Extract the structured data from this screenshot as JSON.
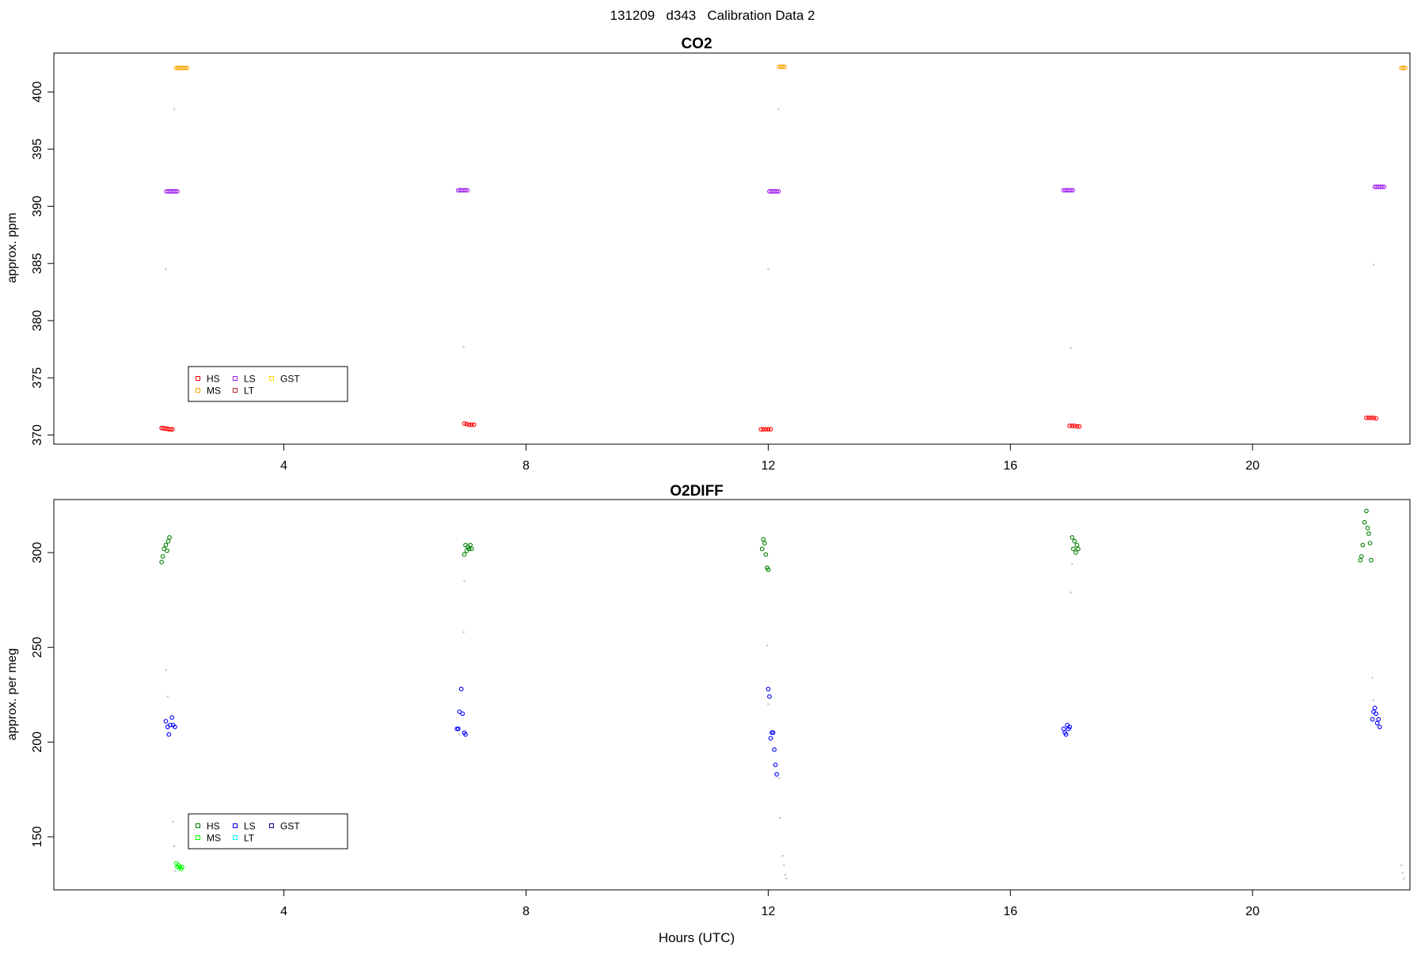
{
  "figure": {
    "title": "131209   d343   Calibration Data 2",
    "xlabel": "Hours (UTC)"
  },
  "chart_data": [
    {
      "type": "scatter",
      "title": "CO2",
      "xlabel": "",
      "ylabel": "approx. ppm",
      "xlim": [
        0.2,
        22.6
      ],
      "ylim": [
        369.2,
        403.4
      ],
      "xticks": [
        4,
        8,
        12,
        16,
        20
      ],
      "yticks": [
        370,
        375,
        380,
        385,
        390,
        395,
        400
      ],
      "legend": {
        "placement": "bottom-left",
        "columns": 3,
        "entries": [
          {
            "label": "HS",
            "color": "#ff0000"
          },
          {
            "label": "MS",
            "color": "#ffa500"
          },
          {
            "label": "LS",
            "color": "#a020f0"
          },
          {
            "label": "LT",
            "color": "#b22222"
          },
          {
            "label": "GST",
            "color": "#ffd700"
          }
        ]
      },
      "grid": false,
      "series": [
        {
          "name": "HS",
          "color": "#ff0000",
          "marker": "circle",
          "points": [
            [
              1.98,
              370.6
            ],
            [
              2.01,
              370.6
            ],
            [
              2.04,
              370.55
            ],
            [
              2.07,
              370.55
            ],
            [
              2.1,
              370.5
            ],
            [
              2.13,
              370.5
            ],
            [
              2.16,
              370.5
            ],
            [
              6.98,
              371.0
            ],
            [
              7.02,
              370.95
            ],
            [
              7.06,
              370.9
            ],
            [
              7.1,
              370.9
            ],
            [
              7.14,
              370.9
            ],
            [
              11.88,
              370.5
            ],
            [
              11.92,
              370.5
            ],
            [
              11.96,
              370.5
            ],
            [
              12.0,
              370.5
            ],
            [
              12.04,
              370.5
            ],
            [
              16.98,
              370.8
            ],
            [
              17.02,
              370.8
            ],
            [
              17.06,
              370.8
            ],
            [
              17.1,
              370.75
            ],
            [
              17.14,
              370.75
            ],
            [
              21.88,
              371.5
            ],
            [
              21.92,
              371.5
            ],
            [
              21.96,
              371.5
            ],
            [
              22.0,
              371.5
            ],
            [
              22.04,
              371.45
            ]
          ]
        },
        {
          "name": "MS",
          "color": "#ffa500",
          "marker": "circle",
          "points": [
            [
              2.22,
              402.1
            ],
            [
              2.25,
              402.1
            ],
            [
              2.28,
              402.1
            ],
            [
              2.31,
              402.1
            ],
            [
              2.34,
              402.1
            ],
            [
              2.37,
              402.1
            ],
            [
              2.4,
              402.1
            ],
            [
              12.18,
              402.2
            ],
            [
              12.21,
              402.2
            ],
            [
              12.24,
              402.2
            ],
            [
              12.27,
              402.2
            ],
            [
              22.46,
              402.1
            ],
            [
              22.49,
              402.1
            ],
            [
              22.52,
              402.1
            ]
          ]
        },
        {
          "name": "LS",
          "color": "#a020f0",
          "marker": "circle",
          "points": [
            [
              2.06,
              391.3
            ],
            [
              2.09,
              391.3
            ],
            [
              2.12,
              391.3
            ],
            [
              2.15,
              391.3
            ],
            [
              2.18,
              391.3
            ],
            [
              2.21,
              391.3
            ],
            [
              2.24,
              391.3
            ],
            [
              6.88,
              391.4
            ],
            [
              6.91,
              391.4
            ],
            [
              6.94,
              391.4
            ],
            [
              6.97,
              391.4
            ],
            [
              7.0,
              391.4
            ],
            [
              7.03,
              391.4
            ],
            [
              12.02,
              391.3
            ],
            [
              12.05,
              391.3
            ],
            [
              12.08,
              391.3
            ],
            [
              12.11,
              391.3
            ],
            [
              12.14,
              391.3
            ],
            [
              12.17,
              391.3
            ],
            [
              16.88,
              391.4
            ],
            [
              16.91,
              391.4
            ],
            [
              16.94,
              391.4
            ],
            [
              16.97,
              391.4
            ],
            [
              17.0,
              391.4
            ],
            [
              17.03,
              391.4
            ],
            [
              22.02,
              391.7
            ],
            [
              22.05,
              391.7
            ],
            [
              22.08,
              391.7
            ],
            [
              22.11,
              391.7
            ],
            [
              22.14,
              391.7
            ],
            [
              22.17,
              391.7
            ]
          ]
        },
        {
          "name": "transition",
          "color": "#bfbfbf",
          "marker": "dot",
          "points": [
            [
              2.05,
              384.5
            ],
            [
              2.19,
              398.5
            ],
            [
              6.97,
              377.7
            ],
            [
              12.0,
              384.5
            ],
            [
              12.17,
              398.5
            ],
            [
              17.0,
              377.6
            ],
            [
              22.0,
              384.9
            ]
          ]
        }
      ]
    },
    {
      "type": "scatter",
      "title": "O2DIFF",
      "xlabel": "Hours (UTC)",
      "ylabel": "approx. per meg",
      "xlim": [
        0.2,
        22.6
      ],
      "ylim": [
        122,
        328
      ],
      "xticks": [
        4,
        8,
        12,
        16,
        20
      ],
      "yticks": [
        150,
        200,
        250,
        300
      ],
      "legend": {
        "placement": "bottom-left",
        "columns": 3,
        "entries": [
          {
            "label": "HS",
            "color": "#008000"
          },
          {
            "label": "MS",
            "color": "#00ff00"
          },
          {
            "label": "LS",
            "color": "#0000ff"
          },
          {
            "label": "LT",
            "color": "#00ffff"
          },
          {
            "label": "GST",
            "color": "#00008b"
          }
        ]
      },
      "grid": false,
      "series": [
        {
          "name": "HS",
          "color": "#008000",
          "marker": "circle",
          "points": [
            [
              1.98,
              295
            ],
            [
              2.0,
              298
            ],
            [
              2.02,
              302
            ],
            [
              2.05,
              304
            ],
            [
              2.07,
              301
            ],
            [
              2.09,
              306
            ],
            [
              2.11,
              308
            ],
            [
              6.98,
              299
            ],
            [
              7.0,
              304
            ],
            [
              7.02,
              301
            ],
            [
              7.04,
              303
            ],
            [
              7.06,
              302
            ],
            [
              7.08,
              304
            ],
            [
              7.1,
              302
            ],
            [
              11.9,
              302
            ],
            [
              11.92,
              307
            ],
            [
              11.94,
              305
            ],
            [
              11.96,
              299
            ],
            [
              11.98,
              292
            ],
            [
              12.0,
              291
            ],
            [
              17.02,
              308
            ],
            [
              17.04,
              302
            ],
            [
              17.06,
              306
            ],
            [
              17.08,
              300
            ],
            [
              17.1,
              304
            ],
            [
              17.12,
              302
            ],
            [
              21.78,
              296
            ],
            [
              21.8,
              298
            ],
            [
              21.82,
              304
            ],
            [
              21.85,
              316
            ],
            [
              21.88,
              322
            ],
            [
              21.9,
              313
            ],
            [
              21.92,
              310
            ],
            [
              21.94,
              305
            ],
            [
              21.96,
              296
            ]
          ]
        },
        {
          "name": "MS",
          "color": "#00ff00",
          "marker": "circle",
          "points": [
            [
              2.22,
              136
            ],
            [
              2.24,
              134
            ],
            [
              2.26,
              135
            ],
            [
              2.28,
              134
            ],
            [
              2.3,
              133
            ],
            [
              2.32,
              134
            ]
          ]
        },
        {
          "name": "LS",
          "color": "#0000ff",
          "marker": "circle",
          "points": [
            [
              2.05,
              211
            ],
            [
              2.08,
              208
            ],
            [
              2.1,
              204
            ],
            [
              2.12,
              209
            ],
            [
              2.15,
              213
            ],
            [
              2.17,
              209
            ],
            [
              2.2,
              208
            ],
            [
              6.86,
              207
            ],
            [
              6.88,
              207
            ],
            [
              6.9,
              216
            ],
            [
              6.93,
              228
            ],
            [
              6.95,
              215
            ],
            [
              6.98,
              205
            ],
            [
              7.0,
              204
            ],
            [
              12.0,
              228
            ],
            [
              12.02,
              224
            ],
            [
              12.04,
              202
            ],
            [
              12.06,
              205
            ],
            [
              12.08,
              205
            ],
            [
              12.1,
              196
            ],
            [
              12.12,
              188
            ],
            [
              12.14,
              183
            ],
            [
              16.88,
              207
            ],
            [
              16.9,
              205
            ],
            [
              16.92,
              204
            ],
            [
              16.94,
              209
            ],
            [
              16.96,
              207
            ],
            [
              16.98,
              208
            ],
            [
              21.98,
              212
            ],
            [
              22.0,
              216
            ],
            [
              22.02,
              218
            ],
            [
              22.04,
              215
            ],
            [
              22.06,
              210
            ],
            [
              22.08,
              212
            ],
            [
              22.1,
              208
            ]
          ]
        },
        {
          "name": "transition",
          "color": "#bfbfbf",
          "marker": "dot",
          "points": [
            [
              2.05,
              238
            ],
            [
              2.08,
              224
            ],
            [
              2.17,
              158
            ],
            [
              2.19,
              145
            ],
            [
              2.2,
              132
            ],
            [
              6.98,
              285
            ],
            [
              6.97,
              258
            ],
            [
              6.9,
              204
            ],
            [
              11.98,
              251
            ],
            [
              12.0,
              220
            ],
            [
              12.18,
              181
            ],
            [
              12.2,
              160
            ],
            [
              12.24,
              140
            ],
            [
              12.26,
              135
            ],
            [
              12.28,
              130
            ],
            [
              12.3,
              128
            ],
            [
              17.02,
              294
            ],
            [
              17.0,
              279
            ],
            [
              21.98,
              234
            ],
            [
              22.0,
              222
            ],
            [
              22.46,
              135
            ],
            [
              22.48,
              131
            ],
            [
              22.5,
              128
            ]
          ]
        }
      ]
    }
  ]
}
